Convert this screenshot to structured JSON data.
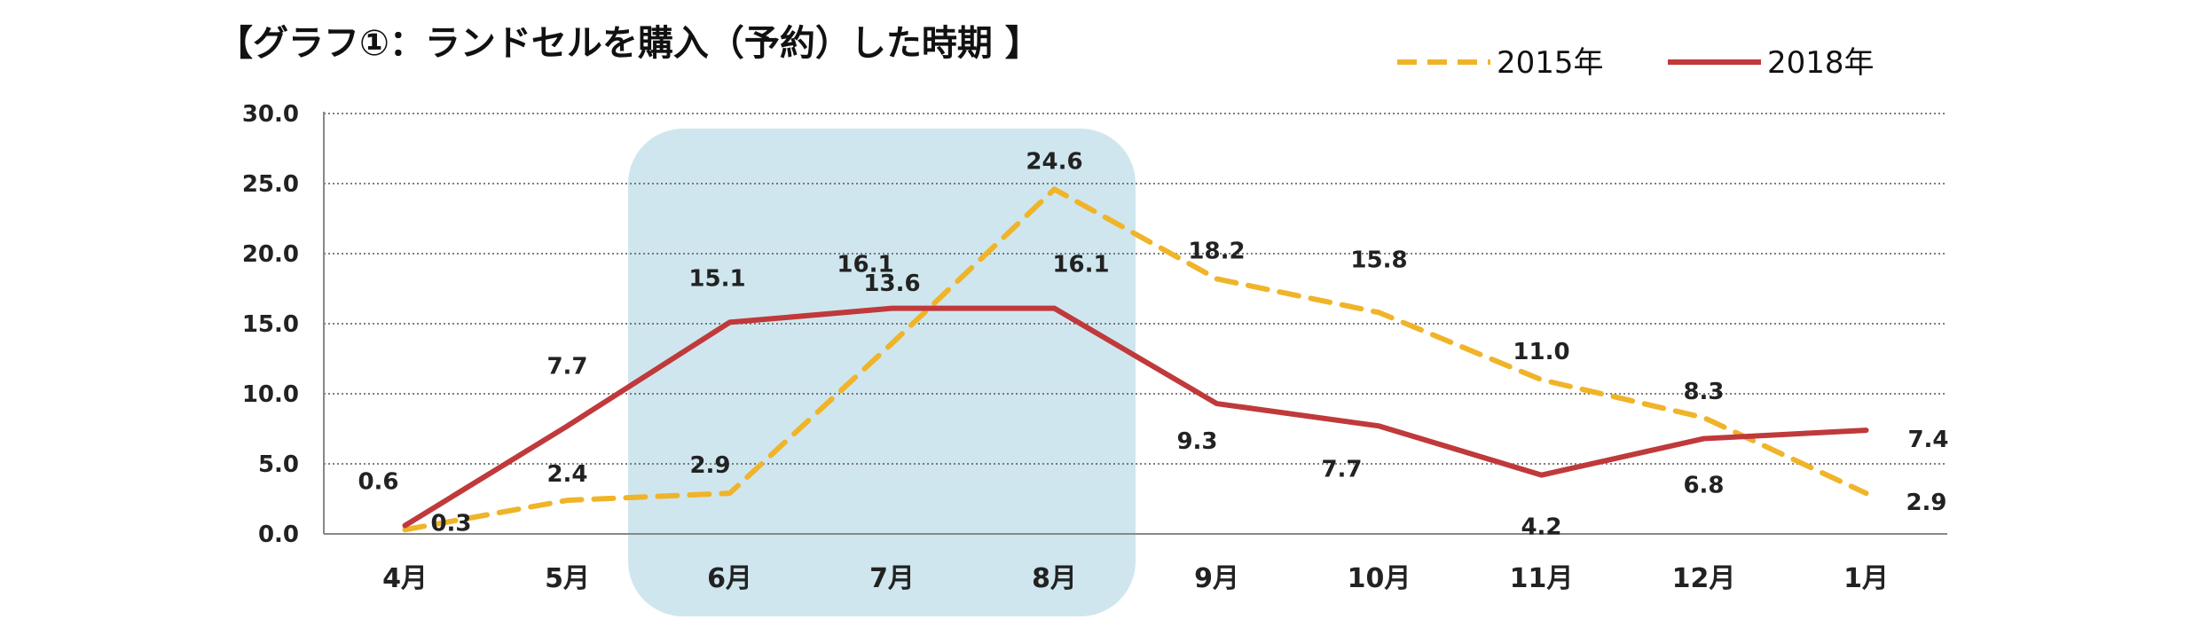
{
  "chart_data": {
    "type": "line",
    "title": "【グラフ①：ランドセルを購入（予約）した時期 】",
    "categories": [
      "4月",
      "5月",
      "6月",
      "7月",
      "8月",
      "9月",
      "10月",
      "11月",
      "12月",
      "1月"
    ],
    "series": [
      {
        "name": "2015年",
        "color": "#f0b429",
        "dash": true,
        "values": [
          0.3,
          2.4,
          2.9,
          13.6,
          24.6,
          18.2,
          15.8,
          11.0,
          8.3,
          2.9
        ]
      },
      {
        "name": "2018年",
        "color": "#c0393b",
        "dash": false,
        "values": [
          0.6,
          7.7,
          15.1,
          16.1,
          16.1,
          9.3,
          7.7,
          4.2,
          6.8,
          7.4
        ]
      }
    ],
    "y_ticks": [
      "0.0",
      "5.0",
      "10.0",
      "15.0",
      "20.0",
      "25.0",
      "30.0"
    ],
    "ylim": [
      0,
      30
    ],
    "grid": true,
    "gridStyle": "dotted",
    "legend": "top-right",
    "highlight": {
      "from": "6月",
      "to": "8月",
      "color": "#cfe6ee"
    }
  }
}
